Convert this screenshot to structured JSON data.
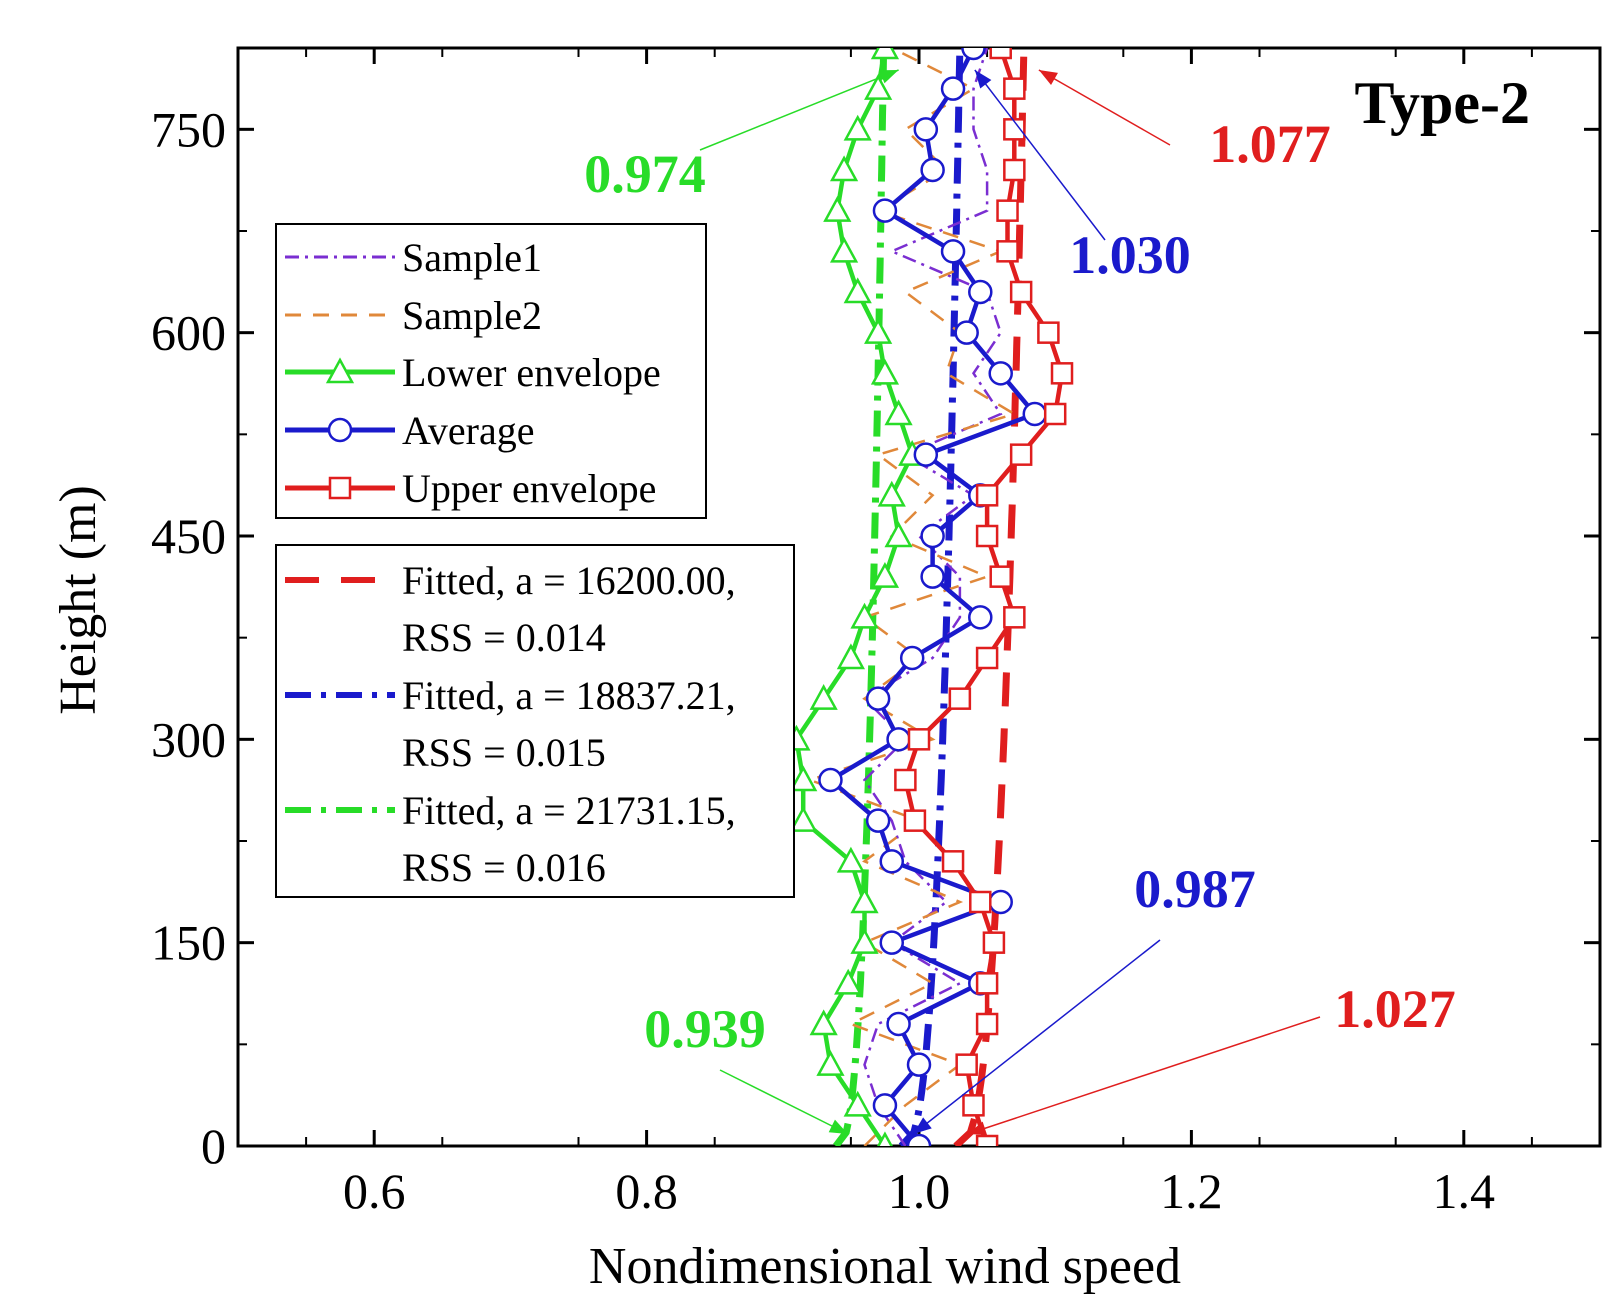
{
  "chart_data": {
    "type": "line",
    "title": "Type-2",
    "xlabel": "Nondimensional wind speed",
    "ylabel": "Height (m)",
    "xlim": [
      0.5,
      1.5
    ],
    "ylim": [
      0,
      810
    ],
    "x_ticks": [
      0.6,
      0.8,
      1.0,
      1.2,
      1.4
    ],
    "x_tick_labels": [
      "0.6",
      "0.8",
      "1.0",
      "1.2",
      "1.4"
    ],
    "y_ticks": [
      0,
      150,
      300,
      450,
      600,
      750
    ],
    "y_tick_labels": [
      "0",
      "150",
      "300",
      "450",
      "600",
      "750"
    ],
    "heights": [
      0,
      30,
      60,
      90,
      120,
      150,
      180,
      210,
      240,
      270,
      300,
      330,
      360,
      390,
      420,
      450,
      480,
      510,
      540,
      570,
      600,
      630,
      660,
      690,
      720,
      750,
      780,
      810
    ],
    "series": [
      {
        "name": "Sample1",
        "color": "#7a2ed1",
        "style": "dashdot",
        "values": [
          0.99,
          0.97,
          0.96,
          0.97,
          1.03,
          0.98,
          1.02,
          0.99,
          0.98,
          0.96,
          0.99,
          0.96,
          1.01,
          1.03,
          1.03,
          1.0,
          1.04,
          0.99,
          1.06,
          1.04,
          1.06,
          1.05,
          0.98,
          1.05,
          1.05,
          1.04,
          1.04,
          1.05
        ]
      },
      {
        "name": "Sample2",
        "color": "#e0883a",
        "style": "dashed",
        "values": [
          0.96,
          0.99,
          1.03,
          0.95,
          1.01,
          0.96,
          1.03,
          0.96,
          1.0,
          0.92,
          1.01,
          0.96,
          1.0,
          0.96,
          1.05,
          0.98,
          1.01,
          0.97,
          1.07,
          1.02,
          1.03,
          0.99,
          1.06,
          0.97,
          1.02,
          0.99,
          1.04,
          0.98
        ]
      },
      {
        "name": "Lower envelope",
        "color": "#28dc28",
        "marker": "triangle",
        "values": [
          0.975,
          0.955,
          0.935,
          0.93,
          0.948,
          0.96,
          0.96,
          0.95,
          0.915,
          0.915,
          0.91,
          0.93,
          0.95,
          0.96,
          0.975,
          0.985,
          0.98,
          0.995,
          0.985,
          0.975,
          0.97,
          0.955,
          0.945,
          0.94,
          0.945,
          0.955,
          0.97,
          0.975
        ]
      },
      {
        "name": "Average",
        "color": "#1a1acc",
        "marker": "circle",
        "values": [
          1.0,
          0.975,
          1.0,
          0.985,
          1.045,
          0.98,
          1.06,
          0.98,
          0.97,
          0.935,
          0.985,
          0.97,
          0.995,
          1.045,
          1.01,
          1.01,
          1.045,
          1.005,
          1.085,
          1.06,
          1.035,
          1.045,
          1.025,
          0.975,
          1.01,
          1.005,
          1.025,
          1.04
        ]
      },
      {
        "name": "Upper envelope",
        "color": "#e01e1e",
        "marker": "square",
        "values": [
          1.05,
          1.04,
          1.035,
          1.05,
          1.05,
          1.055,
          1.045,
          1.025,
          0.997,
          0.99,
          1.0,
          1.03,
          1.05,
          1.07,
          1.06,
          1.05,
          1.05,
          1.075,
          1.1,
          1.105,
          1.095,
          1.075,
          1.065,
          1.065,
          1.07,
          1.07,
          1.07,
          1.06
        ]
      },
      {
        "name": "Fitted, a = 16200.00, RSS = 0.014",
        "color": "#e01e1e",
        "style": "longdash",
        "ref_value": 1.027,
        "top_value": 1.077
      },
      {
        "name": "Fitted, a = 18837.21, RSS = 0.015",
        "color": "#1a1acc",
        "style": "dashdot",
        "ref_value": 0.987,
        "top_value": 1.03
      },
      {
        "name": "Fitted, a = 21731.15, RSS = 0.016",
        "color": "#28dc28",
        "style": "dashdot",
        "ref_value": 0.939,
        "top_value": 0.974
      }
    ],
    "legend": {
      "group1": [
        "Sample1",
        "Sample2",
        "Lower envelope",
        "Average",
        "Upper envelope"
      ],
      "group2": [
        {
          "line1": "Fitted, a = 16200.00,",
          "line2": "RSS = 0.014"
        },
        {
          "line1": "Fitted, a = 18837.21,",
          "line2": "RSS = 0.015"
        },
        {
          "line1": "Fitted, a = 21731.15,",
          "line2": "RSS = 0.016"
        }
      ]
    },
    "annotations": [
      {
        "text": "1.077",
        "color": "#e01e1e",
        "x": 1.077,
        "y": 810
      },
      {
        "text": "1.030",
        "color": "#1a1acc",
        "x": 1.03,
        "y": 810
      },
      {
        "text": "0.974",
        "color": "#28dc28",
        "x": 0.974,
        "y": 810
      },
      {
        "text": "0.987",
        "color": "#1a1acc",
        "x": 0.987,
        "y": 0
      },
      {
        "text": "1.027",
        "color": "#e01e1e",
        "x": 1.027,
        "y": 0
      },
      {
        "text": "0.939",
        "color": "#28dc28",
        "x": 0.939,
        "y": 0
      }
    ]
  }
}
